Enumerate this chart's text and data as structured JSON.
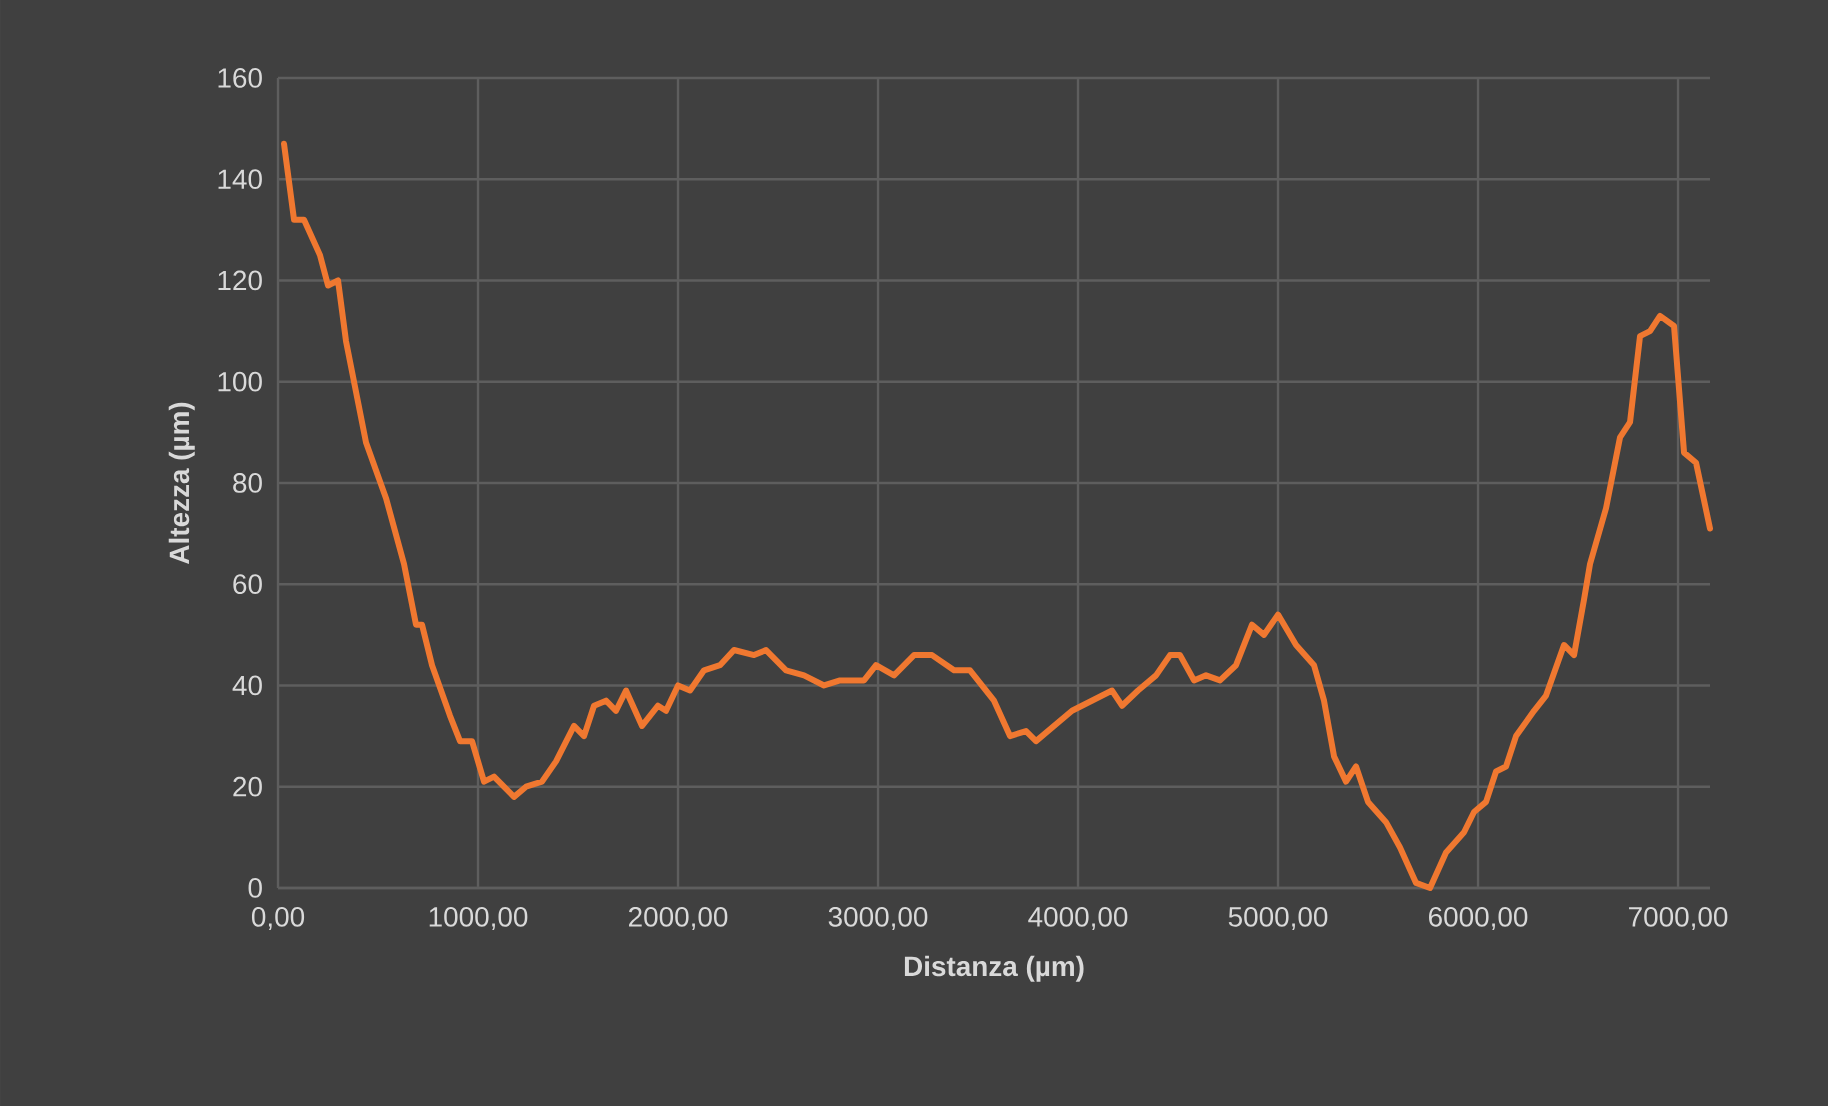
{
  "chart_data": {
    "type": "line",
    "xlabel": "Distanza (µm)",
    "ylabel": "Altezza (µm)",
    "xlim": [
      0,
      7160
    ],
    "ylim": [
      0,
      160
    ],
    "xticks": [
      {
        "value": 0,
        "label": "0,00"
      },
      {
        "value": 1000,
        "label": "1000,00"
      },
      {
        "value": 2000,
        "label": "2000,00"
      },
      {
        "value": 3000,
        "label": "3000,00"
      },
      {
        "value": 4000,
        "label": "4000,00"
      },
      {
        "value": 5000,
        "label": "5000,00"
      },
      {
        "value": 6000,
        "label": "6000,00"
      },
      {
        "value": 7000,
        "label": "7000,00"
      }
    ],
    "yticks": [
      0,
      20,
      40,
      60,
      80,
      100,
      120,
      140,
      160
    ],
    "grid": true,
    "legend": false,
    "marker": "none",
    "line_style": "solid",
    "series": [
      {
        "color": "#f07830",
        "x": [
          30,
          80,
          130,
          210,
          250,
          300,
          340,
          440,
          540,
          630,
          690,
          720,
          770,
          860,
          910,
          970,
          1030,
          1080,
          1180,
          1240,
          1320,
          1390,
          1480,
          1530,
          1580,
          1640,
          1690,
          1740,
          1820,
          1900,
          1940,
          2000,
          2060,
          2130,
          2210,
          2280,
          2380,
          2440,
          2540,
          2630,
          2730,
          2810,
          2930,
          2990,
          3080,
          3180,
          3270,
          3380,
          3460,
          3580,
          3660,
          3740,
          3790,
          3880,
          3970,
          4070,
          4170,
          4220,
          4300,
          4390,
          4460,
          4510,
          4580,
          4640,
          4710,
          4790,
          4870,
          4930,
          5000,
          5090,
          5180,
          5230,
          5280,
          5340,
          5390,
          5450,
          5540,
          5610,
          5690,
          5760,
          5840,
          5930,
          5980,
          6040,
          6090,
          6140,
          6190,
          6280,
          6340,
          6430,
          6480,
          6530,
          6560,
          6640,
          6710,
          6760,
          6810,
          6860,
          6910,
          6980,
          7030,
          7090,
          7160
        ],
        "values": [
          147,
          132,
          132,
          125,
          119,
          120,
          108,
          88,
          77,
          64,
          52,
          52,
          44,
          34,
          29,
          29,
          21,
          22,
          18,
          20,
          21,
          25,
          32,
          30,
          36,
          37,
          35,
          39,
          32,
          36,
          35,
          40,
          39,
          43,
          44,
          47,
          46,
          47,
          43,
          42,
          40,
          41,
          41,
          44,
          42,
          46,
          46,
          43,
          43,
          37,
          30,
          31,
          29,
          32,
          35,
          37,
          39,
          36,
          39,
          42,
          46,
          46,
          41,
          42,
          41,
          44,
          52,
          50,
          54,
          48,
          44,
          37,
          26,
          21,
          24,
          17,
          13,
          8,
          1,
          0,
          7,
          11,
          15,
          17,
          23,
          24,
          30,
          35,
          38,
          48,
          46,
          57,
          64,
          75,
          89,
          92,
          109,
          110,
          113,
          111,
          86,
          84,
          71
        ]
      }
    ]
  }
}
